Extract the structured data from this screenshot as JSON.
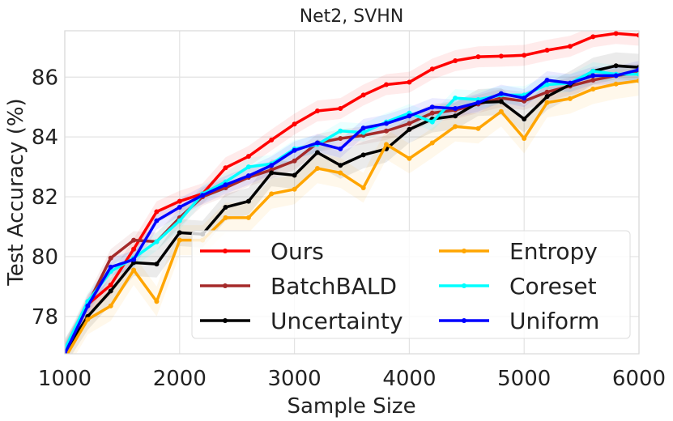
{
  "chart_data": {
    "type": "line",
    "title": "Net2, SVHN",
    "xlabel": "Sample Size",
    "ylabel": "Test Accuracy (%)",
    "xlim": [
      1000,
      6000
    ],
    "ylim": [
      76.75,
      87.55
    ],
    "xticks": [
      1000,
      2000,
      3000,
      4000,
      5000,
      6000
    ],
    "yticks": [
      78,
      80,
      82,
      84,
      86
    ],
    "grid": true,
    "legend_placement": "lower-right",
    "x": [
      1000,
      1200,
      1400,
      1600,
      1800,
      2000,
      2200,
      2400,
      2600,
      2800,
      3000,
      3200,
      3400,
      3600,
      3800,
      4000,
      4200,
      4400,
      4600,
      4800,
      5000,
      5200,
      5400,
      5600,
      5800,
      6000
    ],
    "series": [
      {
        "name": "Ours",
        "color": "#ff0000",
        "band": 0.35,
        "values": [
          76.8,
          78.4,
          79.05,
          80.25,
          81.5,
          81.85,
          82.1,
          82.97,
          83.35,
          83.9,
          84.43,
          84.87,
          84.95,
          85.4,
          85.75,
          85.83,
          86.27,
          86.55,
          86.68,
          86.7,
          86.73,
          86.9,
          87.03,
          87.35,
          87.46,
          87.4
        ]
      },
      {
        "name": "BatchBALD",
        "color": "#a52a2a",
        "band": 0.3,
        "values": [
          76.8,
          78.4,
          79.95,
          80.55,
          80.5,
          81.3,
          82.0,
          82.3,
          82.65,
          82.9,
          83.2,
          83.8,
          83.95,
          84.05,
          84.2,
          84.45,
          84.8,
          84.9,
          85.1,
          85.3,
          85.2,
          85.5,
          85.7,
          85.9,
          86.05,
          86.15
        ]
      },
      {
        "name": "Uncertainty",
        "color": "#000000",
        "band": 0.45,
        "values": [
          76.8,
          78.0,
          78.85,
          79.8,
          79.75,
          80.8,
          80.75,
          81.65,
          81.85,
          82.8,
          82.72,
          83.48,
          83.05,
          83.4,
          83.6,
          84.25,
          84.6,
          84.7,
          85.15,
          85.18,
          84.6,
          85.35,
          85.75,
          86.2,
          86.38,
          86.33
        ]
      },
      {
        "name": "Entropy",
        "color": "#ffa500",
        "band": 0.5,
        "values": [
          76.6,
          77.9,
          78.35,
          79.55,
          78.5,
          80.55,
          80.55,
          81.3,
          81.3,
          82.1,
          82.25,
          82.95,
          82.8,
          82.3,
          83.75,
          83.28,
          83.8,
          84.35,
          84.28,
          84.85,
          83.95,
          85.15,
          85.28,
          85.6,
          85.77,
          85.88
        ]
      },
      {
        "name": "Coreset",
        "color": "#00ffff",
        "band": 0.3,
        "values": [
          76.9,
          78.5,
          79.5,
          79.95,
          80.5,
          81.2,
          82.1,
          82.5,
          83.0,
          83.1,
          83.6,
          83.75,
          84.2,
          84.15,
          84.5,
          84.8,
          84.5,
          85.3,
          85.25,
          85.4,
          85.4,
          85.75,
          85.8,
          86.2,
          86.1,
          86.1
        ]
      },
      {
        "name": "Uniform",
        "color": "#0000ff",
        "band": 0.3,
        "values": [
          76.75,
          78.35,
          79.65,
          79.9,
          81.2,
          81.65,
          82.05,
          82.4,
          82.7,
          83.05,
          83.55,
          83.8,
          83.6,
          84.3,
          84.45,
          84.7,
          85.0,
          84.95,
          85.15,
          85.45,
          85.3,
          85.9,
          85.8,
          86.05,
          86.05,
          86.25
        ]
      }
    ]
  }
}
